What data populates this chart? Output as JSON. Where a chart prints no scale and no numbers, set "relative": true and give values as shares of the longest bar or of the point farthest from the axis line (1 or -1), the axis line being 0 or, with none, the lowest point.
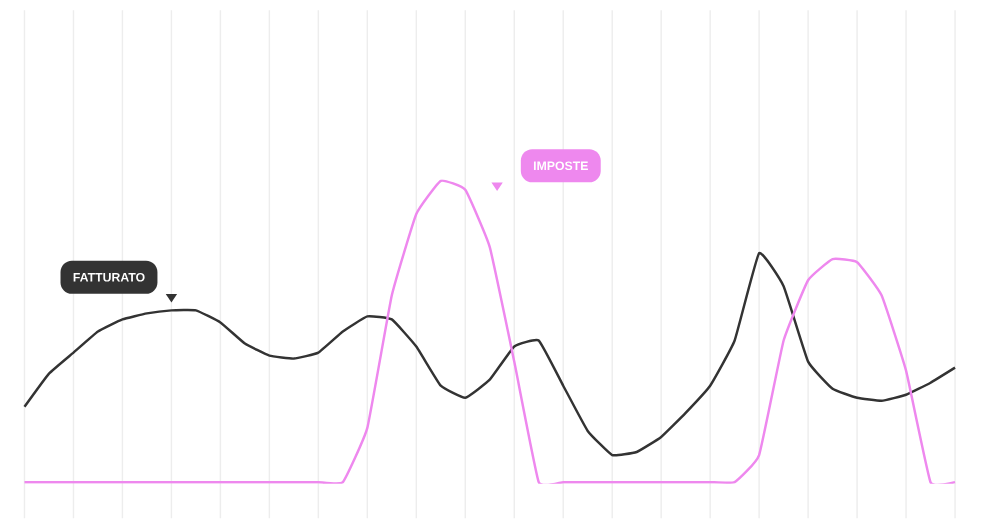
{
  "chart_data": {
    "type": "line",
    "relative": true,
    "grid": "x",
    "legend": false,
    "marker": "none",
    "line_style": "solid",
    "categories": [
      null,
      null,
      null,
      null,
      null,
      null,
      null,
      null,
      null,
      null,
      null,
      null,
      null,
      null,
      null,
      null,
      null,
      null,
      null,
      null,
      null,
      null,
      null,
      null,
      null,
      null,
      null,
      null,
      null,
      null,
      null,
      null,
      null,
      null,
      null,
      null,
      null,
      null,
      null
    ],
    "series": [
      {
        "name": "FATTURATO",
        "color": "#333333",
        "values": [
          0.25,
          0.36,
          0.43,
          0.5,
          0.54,
          0.56,
          0.57,
          0.57,
          0.53,
          0.46,
          0.42,
          0.41,
          0.43,
          0.5,
          0.55,
          0.54,
          0.45,
          0.32,
          0.28,
          0.34,
          0.45,
          0.47,
          0.32,
          0.17,
          0.09,
          0.1,
          0.15,
          0.23,
          0.32,
          0.47,
          0.76,
          0.65,
          0.4,
          0.31,
          0.28,
          0.27,
          0.29,
          0.33,
          0.38
        ]
      },
      {
        "name": "IMPOSTE",
        "color": "#ee88ee",
        "values": [
          0,
          0,
          0,
          0,
          0,
          0,
          0,
          0,
          0,
          0,
          0,
          0,
          0,
          0,
          0.18,
          0.62,
          0.89,
          1,
          0.97,
          0.78,
          0.4,
          0,
          0,
          0,
          0,
          0,
          0,
          0,
          0,
          0,
          0.09,
          0.47,
          0.67,
          0.74,
          0.73,
          0.62,
          0.37,
          0,
          0
        ]
      }
    ]
  }
}
